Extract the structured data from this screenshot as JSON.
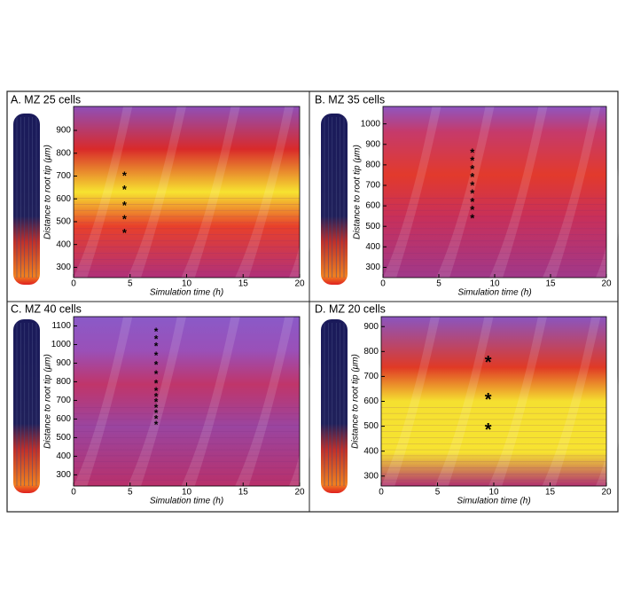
{
  "chart_data": [
    {
      "type": "scatter",
      "title": "A. MZ 25 cells",
      "x_label": "Simulation time (h)",
      "y_label": "Distance to root tip (μm)",
      "xlim": [
        0,
        20
      ],
      "ylim": [
        255,
        1005
      ],
      "xticks": [
        0,
        5,
        10,
        15,
        20
      ],
      "yticks": [
        300,
        400,
        500,
        600,
        700,
        800,
        900
      ],
      "marker": "*",
      "color": "#000000",
      "marker_size": 13,
      "x": [
        4.5,
        4.5,
        4.5,
        4.5,
        4.5
      ],
      "y": [
        710,
        650,
        580,
        520,
        460
      ]
    },
    {
      "type": "scatter",
      "title": "B. MZ 35 cells",
      "x_label": "Simulation time (h)",
      "y_label": "Distance to root tip (μm)",
      "xlim": [
        0,
        20
      ],
      "ylim": [
        250,
        1085
      ],
      "xticks": [
        0,
        5,
        10,
        15,
        20
      ],
      "yticks": [
        300,
        400,
        500,
        600,
        700,
        800,
        900,
        1000
      ],
      "marker": "*",
      "color": "#000000",
      "marker_size": 13,
      "x": [
        8,
        8,
        8,
        8,
        8,
        8,
        8,
        8,
        8
      ],
      "y": [
        550,
        590,
        630,
        670,
        710,
        750,
        790,
        830,
        870
      ]
    },
    {
      "type": "scatter",
      "title": "C. MZ 40 cells",
      "x_label": "Simulation time (h)",
      "y_label": "Distance to root tip (μm)",
      "xlim": [
        0,
        20
      ],
      "ylim": [
        240,
        1150
      ],
      "xticks": [
        0,
        5,
        10,
        15,
        20
      ],
      "yticks": [
        300,
        400,
        500,
        600,
        700,
        800,
        900,
        1000,
        1100
      ],
      "marker": "*",
      "color": "#000000",
      "marker_size": 12,
      "x": [
        7.3,
        7.3,
        7.3,
        7.3,
        7.3,
        7.3,
        7.3,
        7.3,
        7.3,
        7.3,
        7.3,
        7.3,
        7.3,
        7.3
      ],
      "y": [
        580,
        610,
        640,
        670,
        700,
        730,
        760,
        800,
        850,
        900,
        950,
        1000,
        1040,
        1080
      ]
    },
    {
      "type": "scatter",
      "title": "D. MZ 20 cells",
      "x_label": "Simulation time (h)",
      "y_label": "Distance to root tip (μm)",
      "xlim": [
        0,
        20
      ],
      "ylim": [
        260,
        940
      ],
      "xticks": [
        0,
        5,
        10,
        15,
        20
      ],
      "yticks": [
        300,
        400,
        500,
        600,
        700,
        800,
        900
      ],
      "marker": "*",
      "color": "#000000",
      "marker_size": 20,
      "x": [
        9.5,
        9.5,
        9.5
      ],
      "y": [
        770,
        620,
        500
      ]
    }
  ]
}
